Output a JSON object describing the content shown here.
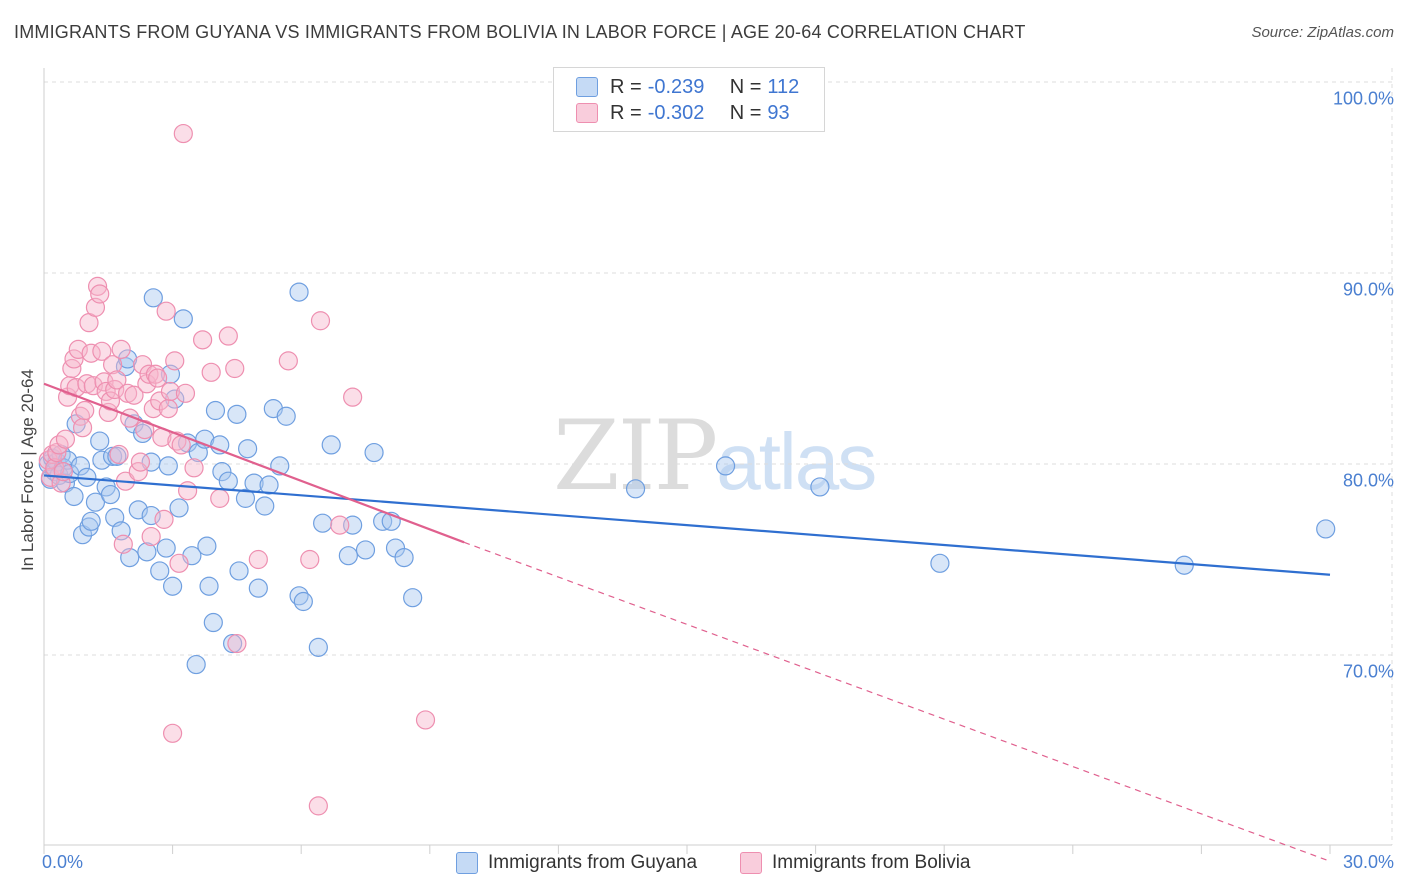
{
  "title": "IMMIGRANTS FROM GUYANA VS IMMIGRANTS FROM BOLIVIA IN LABOR FORCE | AGE 20-64 CORRELATION CHART",
  "source": "Source: ZipAtlas.com",
  "watermark": {
    "zip": "ZIP",
    "atlas": "atlas"
  },
  "legend": {
    "rows": [
      {
        "r_label": "R = ",
        "r_value": "-0.239",
        "n_label": "N = ",
        "n_value": "112"
      },
      {
        "r_label": "R = ",
        "r_value": "-0.302",
        "n_label": "N = ",
        "n_value": "93"
      }
    ]
  },
  "colors": {
    "guyana_fill": "#a9c8f0",
    "guyana_stroke": "#6f9fe0",
    "guyana_line": "#2f6fd0",
    "bolivia_fill": "#f6b6cb",
    "bolivia_stroke": "#ee8fb0",
    "bolivia_line": "#e0608e",
    "tick_text": "#4a7fd0",
    "grid": "#dcdcdc"
  },
  "chart_data": {
    "type": "scatter",
    "title": "IMMIGRANTS FROM GUYANA VS IMMIGRANTS FROM BOLIVIA IN LABOR FORCE | AGE 20-64 CORRELATION CHART",
    "xlabel": "",
    "ylabel": "In Labor Force | Age 20-64",
    "xlim": [
      0,
      30
    ],
    "ylim": [
      60,
      102
    ],
    "x_tick_labels": [
      "0.0%",
      "30.0%"
    ],
    "y_ticks": [
      70,
      80,
      90,
      100
    ],
    "y_tick_labels": [
      "70.0%",
      "80.0%",
      "90.0%",
      "100.0%"
    ],
    "legend_position": "top-center",
    "series": [
      {
        "name": "Immigrants from Guyana",
        "r": -0.239,
        "n": 112,
        "trend": {
          "x0": 0,
          "y0": 79.4,
          "x1": 30,
          "y1": 74.2
        },
        "points": [
          [
            0.1,
            80.0
          ],
          [
            0.15,
            79.2
          ],
          [
            0.2,
            80.3
          ],
          [
            0.25,
            79.6
          ],
          [
            0.3,
            80.1
          ],
          [
            0.35,
            79.4
          ],
          [
            0.4,
            80.5
          ],
          [
            0.45,
            79.8
          ],
          [
            0.5,
            79.0
          ],
          [
            0.55,
            80.2
          ],
          [
            0.6,
            79.5
          ],
          [
            0.7,
            78.3
          ],
          [
            0.75,
            82.1
          ],
          [
            0.85,
            79.9
          ],
          [
            0.9,
            76.3
          ],
          [
            1.0,
            79.3
          ],
          [
            1.05,
            76.7
          ],
          [
            1.1,
            77.0
          ],
          [
            1.2,
            78.0
          ],
          [
            1.3,
            81.2
          ],
          [
            1.35,
            80.2
          ],
          [
            1.45,
            78.8
          ],
          [
            1.55,
            78.4
          ],
          [
            1.6,
            80.4
          ],
          [
            1.65,
            77.2
          ],
          [
            1.7,
            80.4
          ],
          [
            1.8,
            76.5
          ],
          [
            1.9,
            85.1
          ],
          [
            1.95,
            85.5
          ],
          [
            2.0,
            75.1
          ],
          [
            2.1,
            82.1
          ],
          [
            2.2,
            77.6
          ],
          [
            2.3,
            81.6
          ],
          [
            2.4,
            75.4
          ],
          [
            2.5,
            80.1
          ],
          [
            2.5,
            77.3
          ],
          [
            2.55,
            88.7
          ],
          [
            2.7,
            74.4
          ],
          [
            2.85,
            75.6
          ],
          [
            2.95,
            84.7
          ],
          [
            2.9,
            79.9
          ],
          [
            3.0,
            73.6
          ],
          [
            3.05,
            83.4
          ],
          [
            3.15,
            77.7
          ],
          [
            3.25,
            87.6
          ],
          [
            3.35,
            81.1
          ],
          [
            3.45,
            75.2
          ],
          [
            3.55,
            69.5
          ],
          [
            3.6,
            80.6
          ],
          [
            3.75,
            81.3
          ],
          [
            3.8,
            75.7
          ],
          [
            3.85,
            73.6
          ],
          [
            3.95,
            71.7
          ],
          [
            4.0,
            82.8
          ],
          [
            4.1,
            81.0
          ],
          [
            4.15,
            79.6
          ],
          [
            4.3,
            79.1
          ],
          [
            4.4,
            70.6
          ],
          [
            4.5,
            82.6
          ],
          [
            4.55,
            74.4
          ],
          [
            4.7,
            78.2
          ],
          [
            4.75,
            80.8
          ],
          [
            4.9,
            79.0
          ],
          [
            5.0,
            73.5
          ],
          [
            5.15,
            77.8
          ],
          [
            5.25,
            78.9
          ],
          [
            5.35,
            82.9
          ],
          [
            5.5,
            79.9
          ],
          [
            5.65,
            82.5
          ],
          [
            5.95,
            73.1
          ],
          [
            5.95,
            89.0
          ],
          [
            6.05,
            72.8
          ],
          [
            6.4,
            70.4
          ],
          [
            6.5,
            76.9
          ],
          [
            6.7,
            81.0
          ],
          [
            7.1,
            75.2
          ],
          [
            7.2,
            76.8
          ],
          [
            7.5,
            75.5
          ],
          [
            7.7,
            80.6
          ],
          [
            7.9,
            77.0
          ],
          [
            8.1,
            77.0
          ],
          [
            8.2,
            75.6
          ],
          [
            8.4,
            75.1
          ],
          [
            8.6,
            73.0
          ],
          [
            13.8,
            78.7
          ],
          [
            15.9,
            79.9
          ],
          [
            18.1,
            78.8
          ],
          [
            20.9,
            74.8
          ],
          [
            26.6,
            74.7
          ],
          [
            29.9,
            76.6
          ]
        ]
      },
      {
        "name": "Immigrants from Bolivia",
        "r": -0.302,
        "n": 93,
        "trend": {
          "x0": 0,
          "y0": 84.2,
          "x1": 9.8,
          "y1": 75.9
        },
        "trend_dashed": {
          "x0": 9.8,
          "y0": 75.9,
          "x1": 30,
          "y1": 59.2
        },
        "points": [
          [
            0.1,
            80.2
          ],
          [
            0.15,
            79.3
          ],
          [
            0.2,
            80.5
          ],
          [
            0.25,
            79.8
          ],
          [
            0.3,
            80.6
          ],
          [
            0.35,
            81.0
          ],
          [
            0.4,
            79.0
          ],
          [
            0.45,
            79.6
          ],
          [
            0.5,
            81.3
          ],
          [
            0.55,
            83.5
          ],
          [
            0.6,
            84.1
          ],
          [
            0.65,
            85.0
          ],
          [
            0.7,
            85.5
          ],
          [
            0.75,
            84.0
          ],
          [
            0.8,
            86.0
          ],
          [
            0.85,
            82.5
          ],
          [
            0.9,
            81.9
          ],
          [
            0.95,
            82.8
          ],
          [
            1.0,
            84.2
          ],
          [
            1.05,
            87.4
          ],
          [
            1.1,
            85.8
          ],
          [
            1.15,
            84.1
          ],
          [
            1.2,
            88.2
          ],
          [
            1.25,
            89.3
          ],
          [
            1.3,
            88.9
          ],
          [
            1.35,
            85.9
          ],
          [
            1.4,
            84.3
          ],
          [
            1.45,
            83.8
          ],
          [
            1.5,
            82.7
          ],
          [
            1.55,
            83.3
          ],
          [
            1.6,
            85.2
          ],
          [
            1.65,
            83.9
          ],
          [
            1.7,
            84.4
          ],
          [
            1.75,
            80.5
          ],
          [
            1.8,
            86.0
          ],
          [
            1.85,
            75.8
          ],
          [
            1.9,
            79.1
          ],
          [
            1.95,
            83.7
          ],
          [
            2.0,
            82.4
          ],
          [
            2.1,
            83.6
          ],
          [
            2.2,
            79.6
          ],
          [
            2.25,
            80.1
          ],
          [
            2.3,
            85.2
          ],
          [
            2.35,
            81.8
          ],
          [
            2.4,
            84.2
          ],
          [
            2.45,
            84.7
          ],
          [
            2.5,
            76.2
          ],
          [
            2.55,
            82.9
          ],
          [
            2.6,
            84.7
          ],
          [
            2.65,
            84.5
          ],
          [
            2.7,
            83.3
          ],
          [
            2.75,
            81.4
          ],
          [
            2.8,
            77.1
          ],
          [
            2.85,
            88.0
          ],
          [
            2.9,
            82.9
          ],
          [
            2.95,
            83.8
          ],
          [
            3.0,
            65.9
          ],
          [
            3.05,
            85.4
          ],
          [
            3.1,
            81.2
          ],
          [
            3.15,
            74.8
          ],
          [
            3.2,
            81.0
          ],
          [
            3.25,
            97.3
          ],
          [
            3.3,
            83.7
          ],
          [
            3.35,
            78.6
          ],
          [
            3.5,
            79.8
          ],
          [
            3.7,
            86.5
          ],
          [
            3.9,
            84.8
          ],
          [
            4.1,
            78.2
          ],
          [
            4.3,
            86.7
          ],
          [
            4.45,
            85.0
          ],
          [
            4.5,
            70.6
          ],
          [
            5.0,
            75.0
          ],
          [
            5.7,
            85.4
          ],
          [
            6.2,
            75.0
          ],
          [
            6.4,
            62.1
          ],
          [
            6.45,
            87.5
          ],
          [
            6.9,
            76.8
          ],
          [
            7.2,
            83.5
          ],
          [
            8.9,
            66.6
          ]
        ]
      }
    ]
  }
}
